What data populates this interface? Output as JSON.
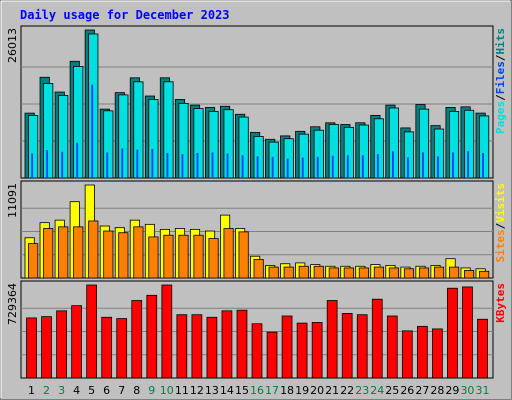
{
  "chart_data": [
    {
      "type": "bar",
      "title": "Daily usage for December 2023",
      "panel": "hits-files-pages",
      "ymax_label": "26013",
      "legend": [
        {
          "label": "Pages",
          "color": "#00e0e0"
        },
        {
          "label": "Files",
          "color": "#0040ff"
        },
        {
          "label": "Hits",
          "color": "#008080"
        }
      ],
      "categories": [
        "1",
        "2",
        "3",
        "4",
        "5",
        "6",
        "7",
        "8",
        "9",
        "10",
        "11",
        "12",
        "13",
        "14",
        "15",
        "16",
        "17",
        "18",
        "19",
        "20",
        "21",
        "22",
        "23",
        "24",
        "25",
        "26",
        "27",
        "28",
        "29",
        "30",
        "31"
      ],
      "weekend_days": [
        "2",
        "3",
        "9",
        "10",
        "16",
        "17",
        "23",
        "24",
        "30",
        "31"
      ],
      "series": [
        {
          "name": "Hits",
          "color": "#008080",
          "values": [
            11400,
            17700,
            15100,
            20500,
            26000,
            12100,
            15000,
            17600,
            14400,
            17600,
            13800,
            12800,
            12400,
            12600,
            11200,
            8000,
            6800,
            7400,
            8200,
            9000,
            9700,
            9400,
            9700,
            11000,
            12800,
            8800,
            12900,
            9200,
            12400,
            12500,
            11400
          ]
        },
        {
          "name": "Files",
          "color": "#0040ff",
          "values": [
            4300,
            4900,
            4600,
            6200,
            16400,
            4500,
            5200,
            5000,
            5100,
            4400,
            4200,
            4400,
            4500,
            4300,
            4000,
            3800,
            3700,
            3400,
            3600,
            3700,
            3900,
            4000,
            4000,
            4200,
            4700,
            3600,
            4500,
            3800,
            4500,
            4700,
            4400
          ]
        },
        {
          "name": "Pages",
          "color": "#00e0e0",
          "values": [
            11000,
            16600,
            14500,
            19600,
            25300,
            11800,
            14600,
            16900,
            13800,
            16900,
            13100,
            12200,
            11700,
            12000,
            10700,
            7300,
            6300,
            6900,
            7700,
            8400,
            9400,
            8900,
            9300,
            10400,
            12300,
            8100,
            12100,
            8600,
            11700,
            11900,
            10900
          ]
        }
      ]
    },
    {
      "type": "bar",
      "panel": "visits-sites",
      "ymax_label": "11091",
      "legend": [
        {
          "label": "Sites",
          "color": "#ff8000"
        },
        {
          "label": "Visits",
          "color": "#ffff00"
        }
      ],
      "series": [
        {
          "name": "Visits",
          "color": "#ffff00",
          "values": [
            4800,
            6600,
            6900,
            9100,
            11091,
            6200,
            6000,
            6900,
            6400,
            5800,
            5900,
            5800,
            5600,
            7500,
            5900,
            2600,
            1500,
            1700,
            1800,
            1600,
            1400,
            1400,
            1400,
            1600,
            1500,
            1300,
            1400,
            1500,
            2300,
            1200,
            1100
          ]
        },
        {
          "name": "Sites",
          "color": "#ff8000",
          "values": [
            4100,
            5900,
            6100,
            6100,
            6800,
            5600,
            5400,
            6100,
            4900,
            5100,
            5100,
            5100,
            4700,
            5900,
            5500,
            2200,
            1300,
            1300,
            1400,
            1400,
            1200,
            1200,
            1200,
            1300,
            1200,
            1100,
            1200,
            1300,
            1300,
            900,
            800
          ]
        }
      ]
    },
    {
      "type": "bar",
      "panel": "kbytes",
      "ymax_label": "729364",
      "legend": [
        {
          "label": "KBytes",
          "color": "#ff0000"
        }
      ],
      "series": [
        {
          "name": "KBytes",
          "color": "#ff0000",
          "values": [
            465000,
            475000,
            520000,
            560000,
            720000,
            470000,
            460000,
            600000,
            640000,
            720000,
            490000,
            490000,
            470000,
            520000,
            525000,
            420000,
            355000,
            480000,
            425000,
            430000,
            600000,
            500000,
            490000,
            610000,
            480000,
            365000,
            400000,
            380000,
            695000,
            705000,
            455000
          ]
        }
      ]
    }
  ]
}
